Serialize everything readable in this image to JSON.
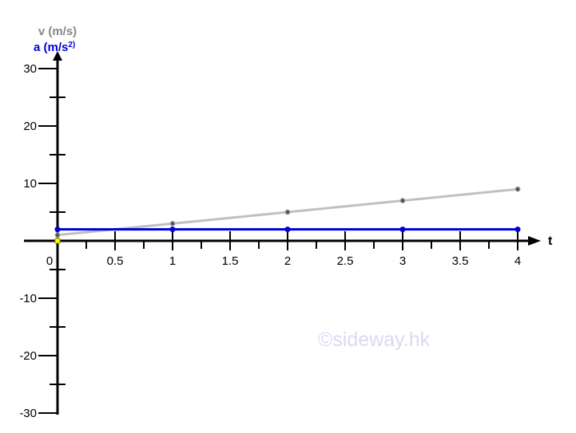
{
  "chart_data": {
    "type": "line",
    "xlabel": "t",
    "ylabel_velocity": "v (m/s)",
    "ylabel_acceleration_prefix": "a (m/s",
    "ylabel_acceleration_sup": "2)",
    "xlim": [
      0,
      4.1
    ],
    "ylim": [
      -30,
      30
    ],
    "x_ticks": [
      "0",
      "0.5",
      "1",
      "1.5",
      "2",
      "2.5",
      "3",
      "3.5",
      "4"
    ],
    "x_tick_values": [
      0,
      0.5,
      1,
      1.5,
      2,
      2.5,
      3,
      3.5,
      4
    ],
    "y_ticks": [
      "30",
      "20",
      "10",
      "-10",
      "-20",
      "-30"
    ],
    "y_tick_values": [
      30,
      20,
      10,
      -10,
      -20,
      -30
    ],
    "y_minor_tick_values": [
      25,
      15,
      5,
      -5,
      -15,
      -25
    ],
    "series": [
      {
        "color": "#c0c0c0",
        "x": [
          0,
          1,
          2,
          3,
          4
        ],
        "y": [
          1,
          3,
          5,
          7,
          9
        ]
      },
      {
        "color": "#0000dd",
        "x": [
          0,
          1,
          2,
          3,
          4
        ],
        "y": [
          2,
          2,
          2,
          2,
          2
        ]
      }
    ],
    "grid": false,
    "watermark": "©sideway.hk",
    "colors": {
      "velocity": "#888888",
      "acceleration": "#0000dd",
      "axis": "#000000",
      "origin_marker": "#ffff00",
      "watermark": "#e0d6f5"
    }
  }
}
